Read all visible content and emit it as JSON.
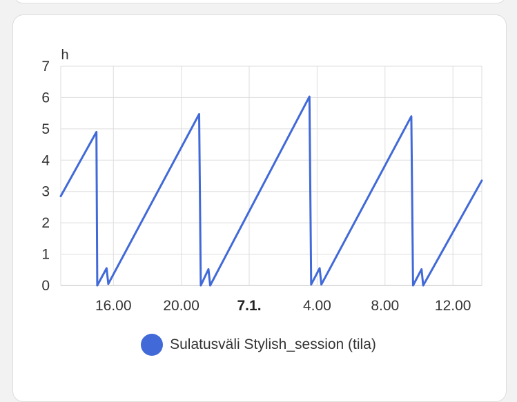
{
  "chart_data": {
    "type": "line",
    "y_unit": "h",
    "ylim": [
      0,
      7
    ],
    "y_ticks": [
      "0",
      "1",
      "2",
      "3",
      "4",
      "5",
      "6",
      "7"
    ],
    "x_ticks": [
      {
        "label": "16.00",
        "bold": false
      },
      {
        "label": "20.00",
        "bold": false
      },
      {
        "label": "7.1.",
        "bold": true
      },
      {
        "label": "4.00",
        "bold": false
      },
      {
        "label": "8.00",
        "bold": false
      },
      {
        "label": "12.00",
        "bold": false
      }
    ],
    "x_tick_times": [
      16,
      20,
      24,
      28,
      32,
      36
    ],
    "xlim": [
      12.9,
      37.7
    ],
    "grid": true,
    "legend_position": "bottom",
    "series": [
      {
        "name": "Sulatusväli Stylish_session (tila)",
        "color": "#4169d8",
        "x": [
          12.9,
          15.0,
          15.05,
          15.6,
          15.7,
          21.05,
          21.15,
          21.6,
          21.7,
          27.55,
          27.65,
          28.15,
          28.25,
          33.55,
          33.65,
          34.15,
          34.25,
          37.7
        ],
        "y": [
          2.85,
          4.9,
          0.0,
          0.55,
          0.05,
          5.47,
          0.0,
          0.52,
          0.0,
          6.03,
          0.03,
          0.55,
          0.03,
          5.4,
          0.0,
          0.52,
          0.0,
          3.35
        ]
      }
    ]
  }
}
